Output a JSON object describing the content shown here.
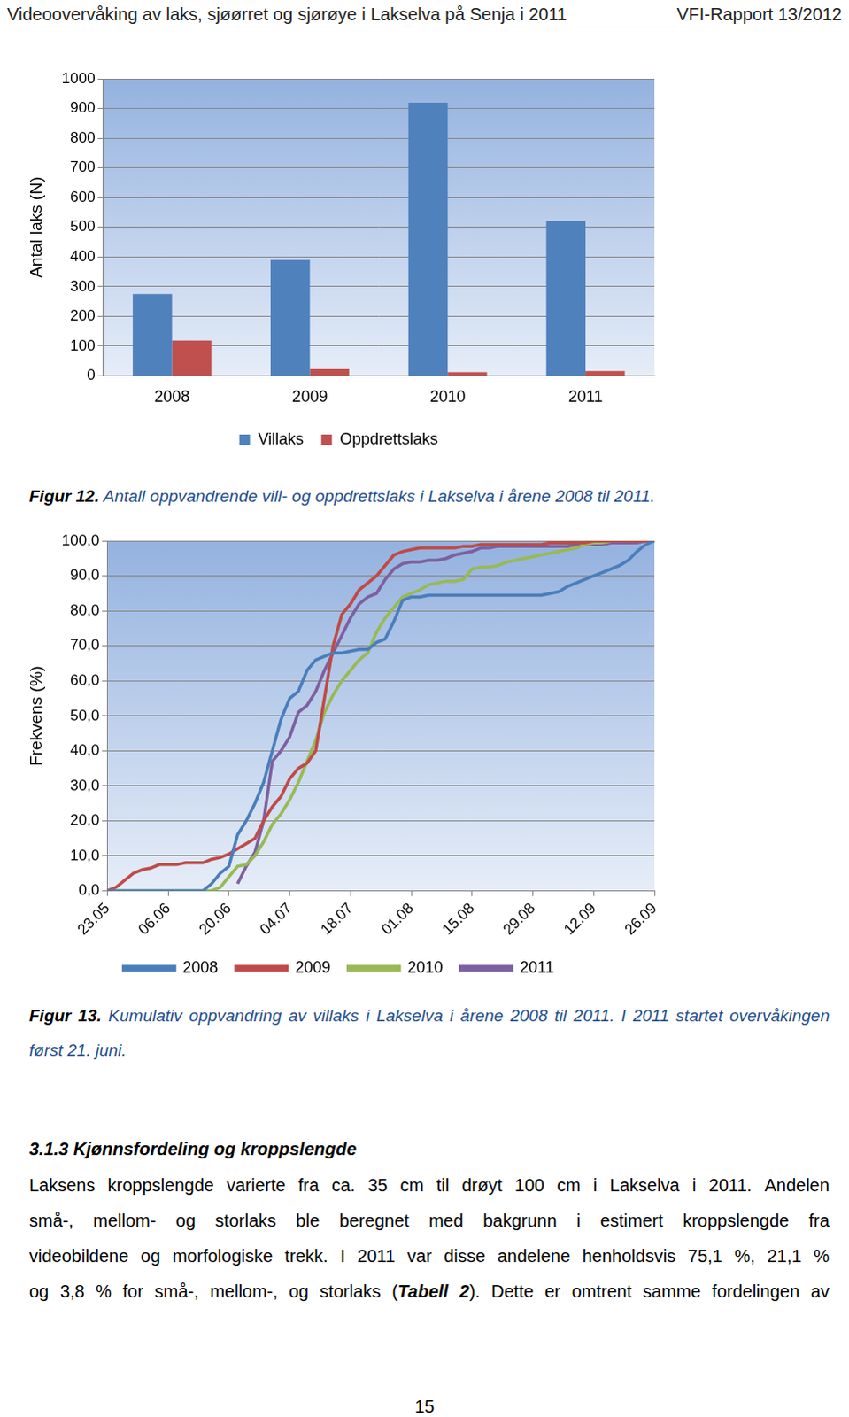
{
  "header": {
    "left": "Videoovervåking av laks, sjøørret og sjørøye i Lakselva på Senja i 2011",
    "right": "VFI-Rapport 13/2012"
  },
  "chart_data": [
    {
      "type": "bar",
      "ylabel": "Antal laks (N)",
      "categories": [
        "2008",
        "2009",
        "2010",
        "2011"
      ],
      "series": [
        {
          "name": "Villaks",
          "color": "#4f81bd",
          "values": [
            275,
            390,
            920,
            520
          ]
        },
        {
          "name": "Oppdrettslaks",
          "color": "#c0504d",
          "values": [
            118,
            22,
            12,
            15
          ]
        }
      ],
      "ylim": [
        0,
        1000
      ],
      "yticks": [
        0,
        100,
        200,
        300,
        400,
        500,
        600,
        700,
        800,
        900,
        1000
      ],
      "grid": true,
      "legend": "bottom"
    },
    {
      "type": "line",
      "ylabel": "Frekvens (%)",
      "categories": [
        "23.05",
        null,
        null,
        null,
        null,
        null,
        null,
        "06.06",
        null,
        null,
        null,
        null,
        null,
        null,
        "20.06",
        null,
        null,
        null,
        null,
        null,
        null,
        "04.07",
        null,
        null,
        null,
        null,
        null,
        null,
        "18.07",
        null,
        null,
        null,
        null,
        null,
        null,
        "01.08",
        null,
        null,
        null,
        null,
        null,
        null,
        "15.08",
        null,
        null,
        null,
        null,
        null,
        null,
        "29.08",
        null,
        null,
        null,
        null,
        null,
        null,
        "12.09",
        null,
        null,
        null,
        null,
        null,
        null,
        "26.09"
      ],
      "series": [
        {
          "name": "2008",
          "color": "#4a7ebb",
          "values": [
            0,
            0,
            0,
            0,
            0,
            0,
            0,
            0,
            0,
            0,
            0,
            0,
            2,
            5,
            7,
            16,
            20,
            25,
            31,
            40,
            49,
            55,
            57,
            63,
            66,
            67,
            68,
            68,
            68.5,
            69,
            69,
            71,
            72,
            77,
            83,
            84,
            84,
            84.5,
            84.5,
            84.5,
            84.5,
            84.5,
            84.5,
            84.5,
            84.5,
            84.5,
            84.5,
            84.5,
            84.5,
            84.5,
            84.5,
            85,
            85.5,
            87,
            88,
            89,
            90,
            91,
            92,
            93,
            94.5,
            97,
            99,
            100
          ]
        },
        {
          "name": "2009",
          "color": "#be4b48",
          "values": [
            0,
            1,
            3,
            5,
            6,
            6.5,
            7.5,
            7.5,
            7.5,
            8,
            8,
            8,
            9,
            9.5,
            10.5,
            12,
            13.5,
            15,
            20,
            24,
            27,
            32,
            35,
            36.5,
            40,
            55,
            70,
            79,
            82,
            86,
            88,
            90,
            93,
            96,
            97,
            97.5,
            98,
            98,
            98,
            98,
            98,
            98.5,
            98.5,
            99,
            99,
            99,
            99,
            99,
            99,
            99,
            99,
            99.5,
            99.5,
            99.5,
            99.5,
            99.5,
            100,
            100,
            100,
            100,
            100,
            100,
            100,
            100
          ]
        },
        {
          "name": "2010",
          "color": "#98b954",
          "values": [
            0,
            0,
            0,
            0,
            0,
            0,
            0,
            0,
            0,
            0,
            0,
            0,
            0,
            1,
            4,
            7,
            7.5,
            10,
            14,
            19,
            22,
            26,
            31,
            37,
            43,
            51,
            56,
            60,
            63,
            66,
            68,
            74,
            78,
            81,
            84,
            85,
            86,
            87.5,
            88,
            88.5,
            88.5,
            89,
            92,
            92.5,
            92.5,
            93,
            94,
            94.5,
            95,
            95.5,
            96,
            96.5,
            97,
            97.5,
            98,
            99,
            99.5,
            99.5,
            100,
            100,
            100,
            100,
            100,
            100
          ]
        },
        {
          "name": "2011",
          "color": "#7d60a0",
          "values": [
            null,
            null,
            null,
            null,
            null,
            null,
            null,
            null,
            null,
            null,
            null,
            null,
            null,
            null,
            null,
            2,
            7,
            11,
            20,
            37,
            40,
            44,
            51,
            53,
            57,
            63,
            68,
            73,
            78,
            82,
            84,
            85,
            89,
            92,
            93.5,
            94,
            94,
            94.5,
            94.5,
            95,
            96,
            96.5,
            97,
            98,
            98,
            98.5,
            98.5,
            98.5,
            98.5,
            98.5,
            98.5,
            98.5,
            98.5,
            98.5,
            99,
            99,
            99,
            99,
            99.5,
            99.5,
            99.5,
            99.5,
            100,
            100
          ]
        }
      ],
      "ylim": [
        0,
        100
      ],
      "yticks": [
        {
          "value": 0,
          "label": "0,0"
        },
        {
          "value": 10,
          "label": "10,0"
        },
        {
          "value": 20,
          "label": "20,0"
        },
        {
          "value": 30,
          "label": "30,0"
        },
        {
          "value": 40,
          "label": "40,0"
        },
        {
          "value": 50,
          "label": "50,0"
        },
        {
          "value": 60,
          "label": "60,0"
        },
        {
          "value": 70,
          "label": "70,0"
        },
        {
          "value": 80,
          "label": "80,0"
        },
        {
          "value": 90,
          "label": "90,0"
        },
        {
          "value": 100,
          "label": "100,0"
        }
      ],
      "grid": true,
      "legend": "bottom"
    }
  ],
  "captions": [
    {
      "label": "Figur 12.",
      "text": "Antall oppvandrende vill- og oppdrettslaks i Lakselva i årene 2008 til 2011."
    },
    {
      "label": "Figur 13.",
      "text": "Kumulativ oppvandring av villaks i Lakselva i årene 2008 til 2011. I 2011 startet overvåkingen først 21. juni."
    }
  ],
  "section": {
    "heading": "3.1.3 Kjønnsfordeling og kroppslengde",
    "lines": [
      [
        {
          "text": "Laksens kroppslengde varierte fra ca. 35 cm til drøyt 100 cm i Lakselva i 2011. Andelen"
        }
      ],
      [
        {
          "text": "små-, mellom- og storlaks ble beregnet med bakgrunn i estimert kroppslengde fra"
        }
      ],
      [
        {
          "text": "videobildene og morfologiske trekk. I 2011 var disse andelene henholdsvis 75,1 %, 21,1 %"
        }
      ],
      [
        {
          "text": "og 3,8 % for små-, mellom-, og storlaks ("
        },
        {
          "text": "Tabell 2",
          "bold_italic": true
        },
        {
          "text": "). Dette er omtrent samme fordelingen av"
        }
      ]
    ]
  },
  "page_number": 15
}
